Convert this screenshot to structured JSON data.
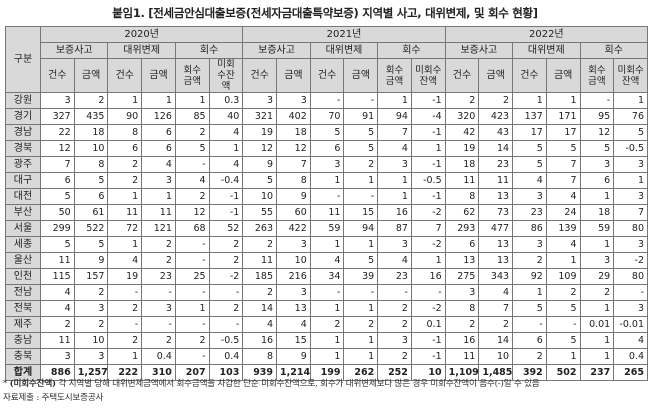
{
  "title": "붙임1. [전세금안심대출보증(전세자금대출특약보증) 지역별 사고, 대위변제, 및 회수 현황]",
  "header": {
    "region_label": "구분",
    "years": [
      "2020년",
      "2021년",
      "2022년"
    ],
    "groups": [
      "보증사고",
      "대위변제",
      "회수"
    ],
    "sub_2020": [
      "건수",
      "금액",
      "건수",
      "금액",
      "회수\n금액",
      "미회\n수잔\n액"
    ],
    "sub_2021": [
      "건수",
      "금액",
      "건수",
      "금액",
      "회수\n금액",
      "미회수\n잔액"
    ],
    "sub_2022": [
      "건수",
      "금액",
      "건수",
      "금액",
      "회수\n금액",
      "미회수\n잔액"
    ]
  },
  "rows": [
    {
      "region": "강원",
      "values": [
        "3",
        "2",
        "1",
        "1",
        "1",
        "0.3",
        "3",
        "3",
        "-",
        "-",
        "1",
        "-1",
        "2",
        "2",
        "1",
        "1",
        "-",
        "1"
      ]
    },
    {
      "region": "경기",
      "values": [
        "327",
        "435",
        "90",
        "126",
        "85",
        "40",
        "321",
        "402",
        "70",
        "91",
        "94",
        "-4",
        "320",
        "423",
        "137",
        "171",
        "95",
        "76"
      ]
    },
    {
      "region": "경남",
      "values": [
        "22",
        "18",
        "8",
        "6",
        "2",
        "4",
        "19",
        "18",
        "5",
        "5",
        "7",
        "-1",
        "42",
        "43",
        "17",
        "17",
        "12",
        "5"
      ]
    },
    {
      "region": "경북",
      "values": [
        "12",
        "10",
        "6",
        "6",
        "5",
        "1",
        "12",
        "12",
        "6",
        "5",
        "4",
        "1",
        "19",
        "14",
        "5",
        "5",
        "5",
        "-0.5"
      ]
    },
    {
      "region": "광주",
      "values": [
        "7",
        "8",
        "2",
        "4",
        "-",
        "4",
        "9",
        "7",
        "3",
        "2",
        "3",
        "-1",
        "18",
        "23",
        "5",
        "7",
        "3",
        "3"
      ]
    },
    {
      "region": "대구",
      "values": [
        "6",
        "5",
        "2",
        "3",
        "4",
        "-0.4",
        "5",
        "8",
        "1",
        "1",
        "1",
        "-0.5",
        "11",
        "11",
        "4",
        "7",
        "6",
        "1"
      ]
    },
    {
      "region": "대전",
      "values": [
        "5",
        "6",
        "1",
        "1",
        "2",
        "-1",
        "10",
        "9",
        "-",
        "-",
        "1",
        "-1",
        "8",
        "13",
        "3",
        "4",
        "1",
        "3"
      ]
    },
    {
      "region": "부산",
      "values": [
        "50",
        "61",
        "11",
        "11",
        "12",
        "-1",
        "55",
        "60",
        "11",
        "15",
        "16",
        "-2",
        "62",
        "73",
        "23",
        "24",
        "18",
        "7"
      ]
    },
    {
      "region": "서울",
      "values": [
        "299",
        "522",
        "72",
        "121",
        "68",
        "52",
        "263",
        "422",
        "59",
        "94",
        "87",
        "7",
        "293",
        "477",
        "86",
        "139",
        "59",
        "80"
      ]
    },
    {
      "region": "세종",
      "values": [
        "5",
        "5",
        "1",
        "2",
        "-",
        "2",
        "2",
        "3",
        "1",
        "1",
        "3",
        "-2",
        "6",
        "13",
        "3",
        "4",
        "1",
        "3"
      ]
    },
    {
      "region": "울산",
      "values": [
        "11",
        "9",
        "4",
        "2",
        "-",
        "2",
        "11",
        "10",
        "4",
        "5",
        "4",
        "1",
        "13",
        "13",
        "2",
        "1",
        "3",
        "-2"
      ]
    },
    {
      "region": "인천",
      "values": [
        "115",
        "157",
        "19",
        "23",
        "25",
        "-2",
        "185",
        "216",
        "34",
        "39",
        "23",
        "16",
        "275",
        "343",
        "92",
        "109",
        "29",
        "80"
      ]
    },
    {
      "region": "전남",
      "values": [
        "4",
        "2",
        "-",
        "-",
        "-",
        "-",
        "2",
        "3",
        "-",
        "-",
        "-",
        "-",
        "3",
        "4",
        "1",
        "2",
        "2",
        "-"
      ]
    },
    {
      "region": "전북",
      "values": [
        "4",
        "3",
        "2",
        "3",
        "1",
        "2",
        "14",
        "13",
        "1",
        "1",
        "2",
        "-2",
        "8",
        "7",
        "5",
        "5",
        "1",
        "3"
      ]
    },
    {
      "region": "제주",
      "values": [
        "2",
        "2",
        "-",
        "-",
        "-",
        "-",
        "4",
        "4",
        "2",
        "2",
        "2",
        "0.1",
        "2",
        "2",
        "-",
        "-",
        "0.01",
        "-0.01"
      ]
    },
    {
      "region": "충남",
      "values": [
        "11",
        "10",
        "2",
        "2",
        "2",
        "-0.5",
        "16",
        "15",
        "1",
        "1",
        "3",
        "-1",
        "16",
        "14",
        "6",
        "5",
        "1",
        "4"
      ]
    },
    {
      "region": "충북",
      "values": [
        "3",
        "3",
        "1",
        "0.4",
        "-",
        "0.4",
        "8",
        "9",
        "1",
        "1",
        "2",
        "-1",
        "11",
        "10",
        "2",
        "1",
        "1",
        "0.4"
      ]
    }
  ],
  "total": {
    "region": "합계",
    "values": [
      "886",
      "1,257",
      "222",
      "310",
      "207",
      "103",
      "939",
      "1,214",
      "199",
      "262",
      "252",
      "10",
      "1,109",
      "1,485",
      "392",
      "502",
      "237",
      "265"
    ]
  },
  "footnote": {
    "marker": "* ",
    "term": "(미회수잔액)",
    "text": " 각 지역별 당해 대위변제금액에서 회수금액을 차감한 단순 미회수잔액으로, 회수가 대위변제보다 많은 경우 미회수잔액이 음수(-)일 수 있음",
    "source": "자료제출 : 주택도시보증공사"
  }
}
